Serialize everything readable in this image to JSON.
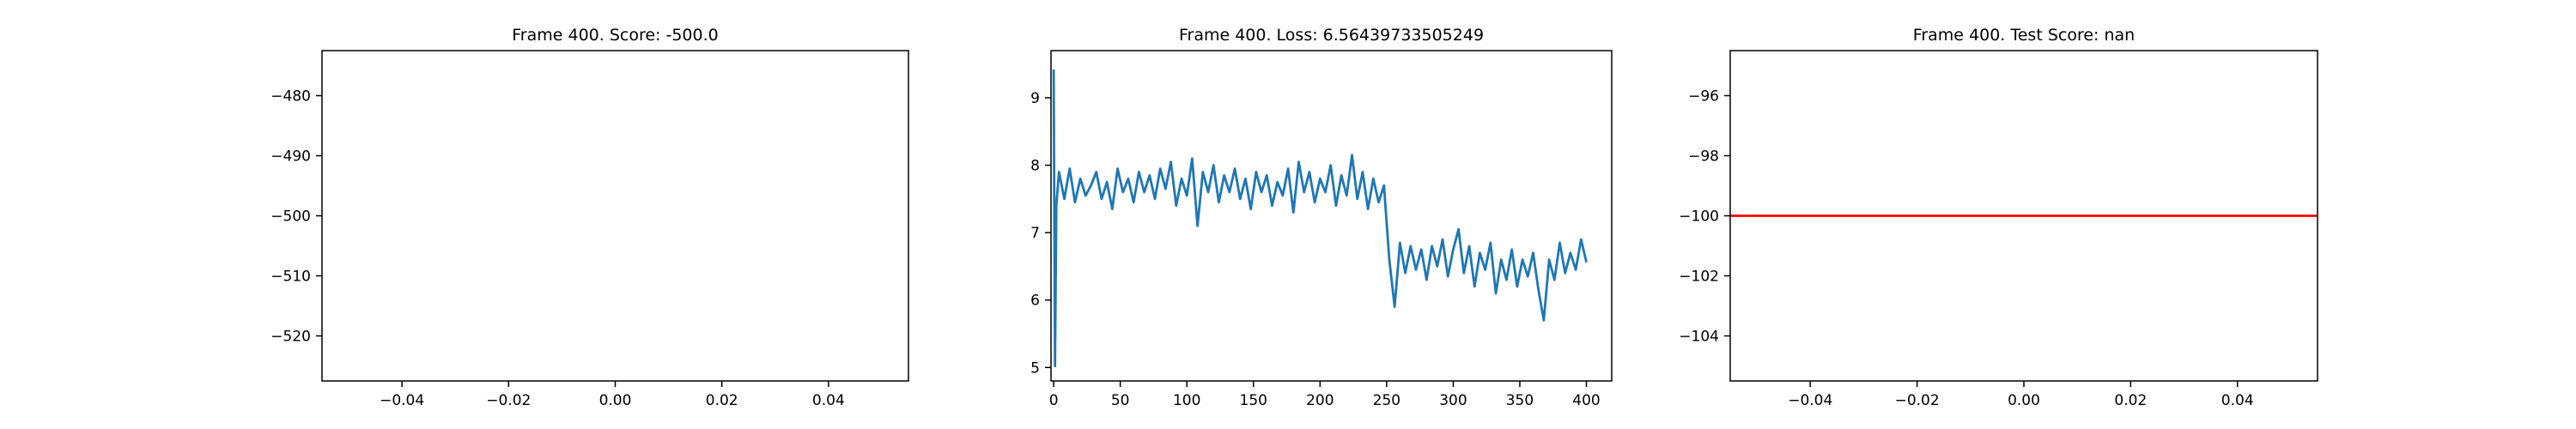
{
  "chart_data": [
    {
      "type": "line",
      "title": "Frame 400. Score: -500.0",
      "x": [
        0
      ],
      "series": [
        {
          "color": "#1f77b4",
          "values": [
            -500
          ]
        }
      ],
      "xlim": [
        -0.055,
        0.055
      ],
      "xticks": [
        {
          "value": -0.04,
          "label": "−0.04"
        },
        {
          "value": -0.02,
          "label": "−0.02"
        },
        {
          "value": 0,
          "label": "0.00"
        },
        0.02,
        0.04
      ],
      "ylim": [
        -527.5,
        -472.5
      ],
      "yticks": [
        {
          "value": -480,
          "label": "−480"
        },
        {
          "value": -490,
          "label": "−490"
        },
        {
          "value": -500,
          "label": "−500"
        },
        {
          "value": -510,
          "label": "−510"
        },
        {
          "value": -520,
          "label": "−520"
        }
      ]
    },
    {
      "type": "line",
      "title": "Frame 400. Loss: 6.56439733505249",
      "x": [
        0,
        1,
        2,
        4,
        8,
        12,
        16,
        20,
        24,
        28,
        32,
        36,
        40,
        44,
        48,
        52,
        56,
        60,
        64,
        68,
        72,
        76,
        80,
        84,
        88,
        92,
        96,
        100,
        104,
        108,
        112,
        116,
        120,
        124,
        128,
        132,
        136,
        140,
        144,
        148,
        152,
        156,
        160,
        164,
        168,
        172,
        176,
        180,
        184,
        188,
        192,
        196,
        200,
        204,
        208,
        212,
        216,
        220,
        224,
        228,
        232,
        236,
        240,
        244,
        248,
        252,
        256,
        260,
        264,
        268,
        272,
        276,
        280,
        284,
        288,
        292,
        296,
        300,
        304,
        308,
        312,
        316,
        320,
        324,
        328,
        332,
        336,
        340,
        344,
        348,
        352,
        356,
        360,
        364,
        368,
        372,
        376,
        380,
        384,
        388,
        392,
        396,
        400
      ],
      "series": [
        {
          "color": "#1f77b4",
          "values": [
            9.42,
            5.02,
            7.4,
            7.9,
            7.5,
            7.95,
            7.45,
            7.8,
            7.55,
            7.7,
            7.9,
            7.5,
            7.75,
            7.35,
            7.95,
            7.6,
            7.8,
            7.45,
            7.9,
            7.6,
            7.85,
            7.5,
            7.95,
            7.65,
            8.05,
            7.4,
            7.8,
            7.55,
            8.1,
            7.1,
            7.9,
            7.6,
            8.0,
            7.45,
            7.85,
            7.6,
            7.95,
            7.5,
            7.8,
            7.35,
            7.9,
            7.6,
            7.85,
            7.4,
            7.75,
            7.55,
            7.95,
            7.3,
            8.05,
            7.6,
            7.9,
            7.45,
            7.8,
            7.6,
            8.0,
            7.4,
            7.85,
            7.55,
            8.15,
            7.5,
            7.9,
            7.35,
            7.8,
            7.45,
            7.7,
            6.6,
            5.9,
            6.85,
            6.4,
            6.8,
            6.45,
            6.75,
            6.3,
            6.8,
            6.5,
            6.9,
            6.35,
            6.75,
            7.05,
            6.4,
            6.8,
            6.2,
            6.7,
            6.45,
            6.85,
            6.1,
            6.6,
            6.3,
            6.75,
            6.2,
            6.6,
            6.35,
            6.7,
            6.15,
            5.7,
            6.6,
            6.3,
            6.85,
            6.4,
            6.7,
            6.45,
            6.9,
            6.56
          ]
        }
      ],
      "xlim": [
        -2,
        419
      ],
      "xticks": [
        0,
        50,
        100,
        150,
        200,
        250,
        300,
        350,
        400
      ],
      "ylim": [
        4.8,
        9.7
      ],
      "yticks": [
        5,
        6,
        7,
        8,
        9
      ]
    },
    {
      "type": "line",
      "title": "Frame 400. Test Score: nan",
      "hlines": [
        {
          "value": -100,
          "color": "#ff0000"
        }
      ],
      "xlim": [
        -0.055,
        0.055
      ],
      "xticks": [
        {
          "value": -0.04,
          "label": "−0.04"
        },
        {
          "value": -0.02,
          "label": "−0.02"
        },
        {
          "value": 0,
          "label": "0.00"
        },
        0.02,
        0.04
      ],
      "ylim": [
        -105.5,
        -94.5
      ],
      "yticks": [
        {
          "value": -96,
          "label": "−96"
        },
        {
          "value": -98,
          "label": "−98"
        },
        {
          "value": -100,
          "label": "−100"
        },
        {
          "value": -102,
          "label": "−102"
        },
        {
          "value": -104,
          "label": "−104"
        }
      ]
    }
  ]
}
